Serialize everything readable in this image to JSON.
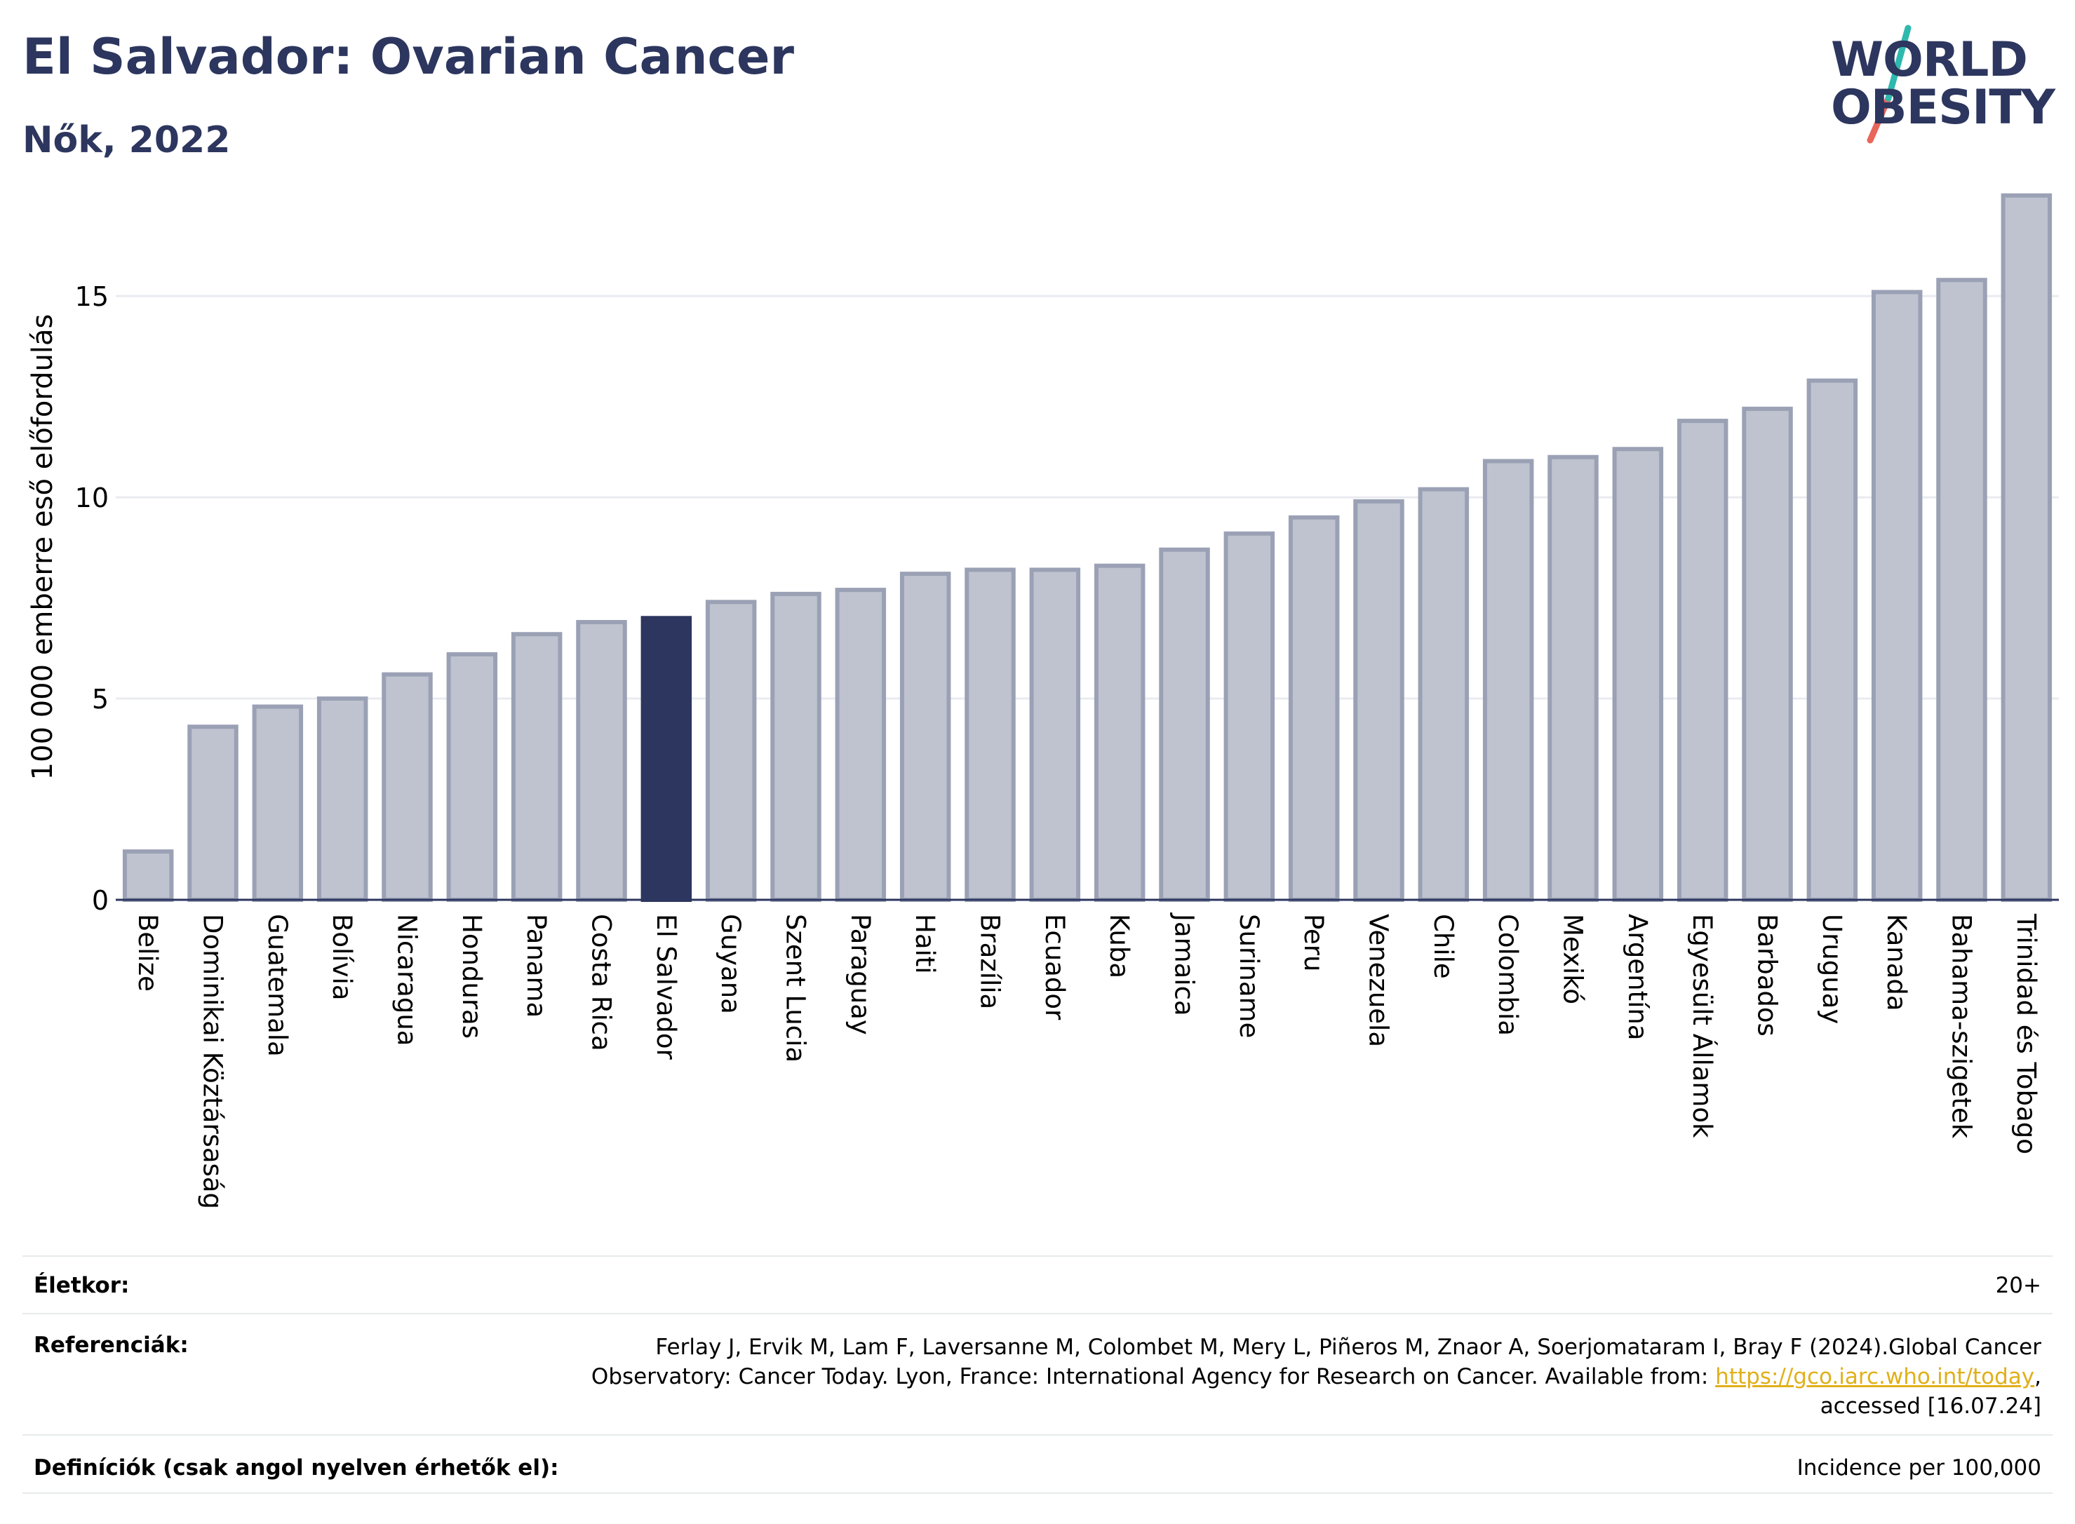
{
  "header": {
    "title": "El Salvador: Ovarian Cancer",
    "subtitle": "Nők, 2022"
  },
  "logo": {
    "line1": "WORLD",
    "line2": "OBESITY",
    "slash_color_top": "#2fb9ae",
    "slash_color_bottom": "#e8665a"
  },
  "chart_data": {
    "type": "bar",
    "ylabel": "100 000 emberre eső előfordulás",
    "ylim": [
      0,
      18
    ],
    "yticks": [
      0,
      5,
      10,
      15
    ],
    "grid": true,
    "highlight": "El Salvador",
    "colors": {
      "bar": "#bfc3cf",
      "bar_border": "#9ba1b5",
      "highlight": "#2c365e"
    },
    "categories": [
      "Belize",
      "Dominikai Köztársaság",
      "Guatemala",
      "Bolívia",
      "Nicaragua",
      "Honduras",
      "Panama",
      "Costa Rica",
      "El Salvador",
      "Guyana",
      "Szent Lucia",
      "Paraguay",
      "Haiti",
      "Brazília",
      "Ecuador",
      "Kuba",
      "Jamaica",
      "Suriname",
      "Peru",
      "Venezuela",
      "Chile",
      "Colombia",
      "Mexikó",
      "Argentína",
      "Egyesült Államok",
      "Barbados",
      "Uruguay",
      "Kanada",
      "Bahama-szigetek",
      "Trinidad és Tobago"
    ],
    "values": [
      1.2,
      4.3,
      4.8,
      5.0,
      5.6,
      6.1,
      6.6,
      6.9,
      7.0,
      7.4,
      7.6,
      7.7,
      8.1,
      8.2,
      8.2,
      8.3,
      8.7,
      9.1,
      9.5,
      9.9,
      10.2,
      10.9,
      11.0,
      11.2,
      11.9,
      12.2,
      12.9,
      15.1,
      15.4,
      17.5
    ]
  },
  "footer": {
    "age_label": "Életkor:",
    "age_value": "20+",
    "refs_label": "Referenciák:",
    "refs_line1": "Ferlay J, Ervik M, Lam F, Laversanne M, Colombet M, Mery L, Piñeros M, Znaor A, Soerjomataram I, Bray F (2024).Global Cancer",
    "refs_line2_prefix": "Observatory: Cancer Today. Lyon, France: International Agency for Research on Cancer. Available from: ",
    "refs_link": "https://gco.iarc.who.int/today",
    "refs_line2_suffix": ",",
    "refs_line3": "accessed [16.07.24]",
    "defs_label": "Definíciók (csak angol nyelven érhetők el):",
    "defs_value": "Incidence per 100,000"
  }
}
